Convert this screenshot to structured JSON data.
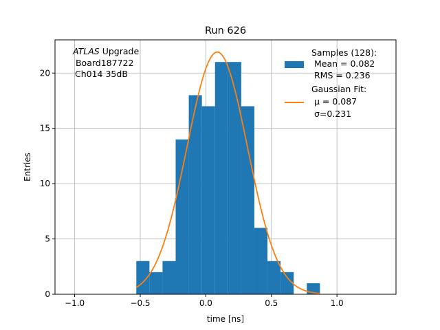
{
  "chart_data": {
    "type": "bar",
    "title": "Run 626",
    "xlabel": "time [ns]",
    "ylabel": "Entries",
    "xlim": [
      -1.15,
      1.45
    ],
    "ylim": [
      0,
      23
    ],
    "grid": true,
    "xticks": [
      -1.0,
      -0.5,
      0.0,
      0.5,
      1.0
    ],
    "xtick_labels": [
      "−1.0",
      "−0.5",
      "0.0",
      "0.5",
      "1.0"
    ],
    "yticks": [
      0,
      5,
      10,
      15,
      20
    ],
    "ytick_labels": [
      "0",
      "5",
      "10",
      "15",
      "20"
    ],
    "bin_edges": [
      -0.53,
      -0.43,
      -0.33,
      -0.23,
      -0.13,
      -0.03,
      0.07,
      0.17,
      0.27,
      0.37,
      0.47,
      0.57,
      0.67,
      0.77,
      0.87
    ],
    "counts": [
      3,
      2,
      3,
      14,
      18,
      17,
      21,
      21,
      17,
      6,
      3,
      2,
      0,
      1
    ],
    "fit": {
      "type": "gaussian",
      "amplitude": 21.9,
      "mu": 0.087,
      "sigma": 0.231,
      "x_range": [
        -0.53,
        0.87
      ]
    },
    "annotation": {
      "italic": "ATLAS",
      "rest": " Upgrade",
      "lines": [
        " Board187722",
        "Ch014 35dB"
      ]
    },
    "legend": {
      "position": "top-right",
      "hist_label": [
        "Samples (128):",
        " Mean = 0.082",
        " RMS = 0.236"
      ],
      "fit_label": [
        "Gaussian Fit:",
        " μ = 0.087",
        " σ=0.231"
      ]
    },
    "colors": {
      "bars": "#1f77b4",
      "fit": "#ff7f0e",
      "grid": "#b0b0b0"
    }
  }
}
